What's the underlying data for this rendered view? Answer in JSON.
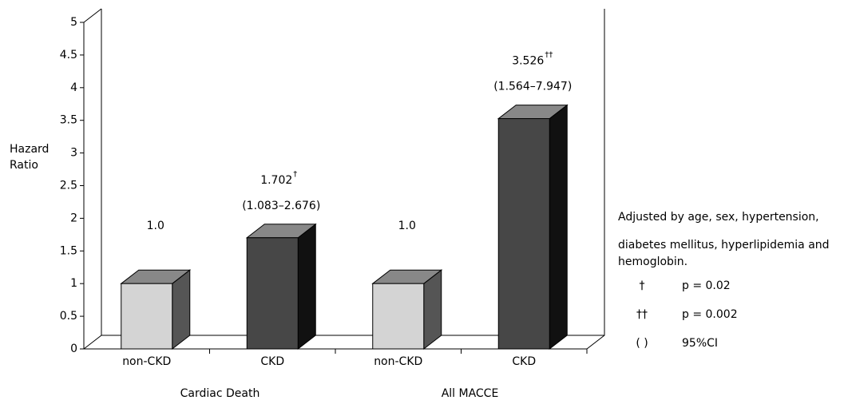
{
  "chart_data": {
    "type": "bar3d",
    "y_label": "Hazard Ratio",
    "categories": [
      "non-CKD",
      "CKD",
      "non-CKD",
      "CKD"
    ],
    "groups": [
      "Cardiac Death",
      "All MACCE"
    ],
    "values": [
      1,
      1.702,
      1,
      3.526
    ],
    "value_labels": [
      "1.0",
      "1.702",
      "1.0",
      "3.526"
    ],
    "significance": [
      null,
      "†",
      null,
      "††"
    ],
    "ci_labels": [
      null,
      "(1.083–2.676)",
      null,
      "(1.564–7.947)"
    ],
    "colors": [
      "#d4d4d4",
      "#474747",
      "#d4d4d4",
      "#474747"
    ],
    "ylim": [
      0,
      5
    ],
    "yticks": [
      0,
      0.5,
      1,
      1.5,
      2,
      2.5,
      3,
      3.5,
      4,
      4.5,
      5
    ],
    "notes": [
      "Adjusted by age, sex, hypertension,",
      "diabetes mellitus, hyperlipidemia and",
      "hemoglobin."
    ],
    "legend": [
      {
        "symbol": "†",
        "text": "p = 0.02"
      },
      {
        "symbol": "††",
        "text": "p = 0.002"
      },
      {
        "symbol": "( )",
        "text": "95%CI"
      }
    ]
  }
}
